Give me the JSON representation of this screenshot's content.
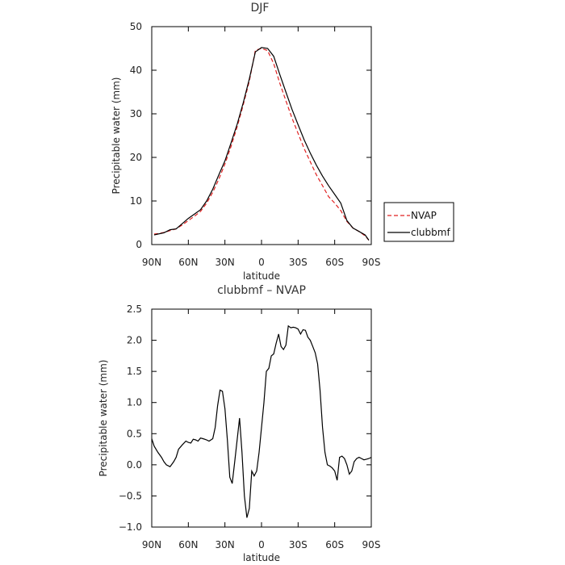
{
  "chart_data": [
    {
      "type": "line",
      "title": "DJF",
      "xlabel": "latitude",
      "ylabel": "Precipitable water (mm)",
      "xlim": [
        -90,
        90
      ],
      "ylim": [
        0,
        50
      ],
      "x_ticks": [
        -90,
        -60,
        -30,
        0,
        30,
        60,
        90
      ],
      "x_tick_labels": [
        "90N",
        "60N",
        "30N",
        "0",
        "30S",
        "60S",
        "90S"
      ],
      "y_ticks": [
        0,
        10,
        20,
        30,
        40,
        50
      ],
      "y_tick_labels": [
        "0",
        "10",
        "20",
        "30",
        "40",
        "50"
      ],
      "legend": "right",
      "series": [
        {
          "name": "NVAP",
          "color": "#e02020",
          "dash": "dashed",
          "x": [
            -88,
            -85,
            -80,
            -75,
            -70,
            -65,
            -60,
            -55,
            -50,
            -45,
            -40,
            -35,
            -30,
            -25,
            -20,
            -15,
            -10,
            -5,
            0,
            5,
            10,
            15,
            20,
            25,
            30,
            35,
            40,
            45,
            50,
            55,
            60,
            65,
            70,
            75,
            80,
            85,
            88
          ],
          "y": [
            2.4,
            2.5,
            2.8,
            3.2,
            3.6,
            4.5,
            5.5,
            6.5,
            7.6,
            9.5,
            12.0,
            15.0,
            18.5,
            22.5,
            27.0,
            32.0,
            37.5,
            44.6,
            45.0,
            44.5,
            41.5,
            37.0,
            33.0,
            29.0,
            25.5,
            22.0,
            19.0,
            16.0,
            13.5,
            11.0,
            9.5,
            7.8,
            5.3,
            3.8,
            3.0,
            2.0,
            1.0
          ]
        },
        {
          "name": "clubbmf",
          "color": "#000000",
          "dash": "solid",
          "x": [
            -88,
            -85,
            -80,
            -75,
            -70,
            -65,
            -60,
            -55,
            -50,
            -45,
            -40,
            -35,
            -30,
            -25,
            -20,
            -15,
            -10,
            -5,
            0,
            5,
            10,
            15,
            20,
            25,
            30,
            35,
            40,
            45,
            50,
            55,
            60,
            65,
            70,
            75,
            80,
            85,
            88
          ],
          "y": [
            2.2,
            2.4,
            2.7,
            3.4,
            3.6,
            4.8,
            6.0,
            7.0,
            8.0,
            10.0,
            12.7,
            16.0,
            19.2,
            23.3,
            27.6,
            32.5,
            38.0,
            44.2,
            45.2,
            45.0,
            43.2,
            39.0,
            35.0,
            31.0,
            27.5,
            24.0,
            21.0,
            18.2,
            15.7,
            13.5,
            11.5,
            9.5,
            5.5,
            3.8,
            3.0,
            2.2,
            1.0
          ]
        }
      ]
    },
    {
      "type": "line",
      "title": "clubbmf – NVAP",
      "xlabel": "latitude",
      "ylabel": "Precipitable water (mm)",
      "xlim": [
        -90,
        90
      ],
      "ylim": [
        -1.0,
        2.5
      ],
      "x_ticks": [
        -90,
        -60,
        -30,
        0,
        30,
        60,
        90
      ],
      "x_tick_labels": [
        "90N",
        "60N",
        "30N",
        "0",
        "30S",
        "60S",
        "90S"
      ],
      "y_ticks": [
        -1.0,
        -0.5,
        0.0,
        0.5,
        1.0,
        1.5,
        2.0,
        2.5
      ],
      "y_tick_labels": [
        "−1.0",
        "−0.5",
        "0.0",
        "0.5",
        "1.0",
        "1.5",
        "2.0",
        "2.5"
      ],
      "series": [
        {
          "color": "#000000",
          "dash": "solid",
          "x": [
            -90,
            -88,
            -85,
            -82,
            -80,
            -78,
            -75,
            -72,
            -70,
            -68,
            -65,
            -62,
            -60,
            -58,
            -56,
            -54,
            -52,
            -50,
            -48,
            -45,
            -43,
            -40,
            -38,
            -36,
            -34,
            -32,
            -30,
            -28,
            -26,
            -24,
            -22,
            -20,
            -18,
            -16,
            -14,
            -12,
            -10,
            -8,
            -6,
            -4,
            -2,
            0,
            2,
            4,
            6,
            8,
            10,
            12,
            14,
            16,
            18,
            20,
            22,
            24,
            26,
            28,
            30,
            32,
            34,
            36,
            38,
            40,
            42,
            44,
            46,
            48,
            50,
            52,
            54,
            56,
            58,
            60,
            62,
            64,
            66,
            68,
            70,
            72,
            74,
            76,
            78,
            80,
            82,
            84,
            86,
            88,
            90
          ],
          "y": [
            0.42,
            0.3,
            0.2,
            0.12,
            0.05,
            0.0,
            -0.03,
            0.05,
            0.12,
            0.25,
            0.32,
            0.38,
            0.36,
            0.35,
            0.41,
            0.4,
            0.38,
            0.43,
            0.42,
            0.4,
            0.38,
            0.42,
            0.6,
            0.95,
            1.2,
            1.18,
            0.9,
            0.4,
            -0.2,
            -0.3,
            0.05,
            0.4,
            0.75,
            0.2,
            -0.5,
            -0.85,
            -0.7,
            -0.1,
            -0.18,
            -0.1,
            0.2,
            0.6,
            1.0,
            1.5,
            1.55,
            1.75,
            1.78,
            1.95,
            2.1,
            1.9,
            1.85,
            1.92,
            2.23,
            2.2,
            2.21,
            2.2,
            2.18,
            2.1,
            2.17,
            2.16,
            2.05,
            2.0,
            1.9,
            1.8,
            1.62,
            1.2,
            0.6,
            0.2,
            0.0,
            -0.02,
            -0.05,
            -0.1,
            -0.25,
            0.12,
            0.14,
            0.1,
            0.0,
            -0.15,
            -0.1,
            0.05,
            0.1,
            0.12,
            0.1,
            0.08,
            0.09,
            0.1,
            0.12
          ],
          "note_style": "solid"
        }
      ]
    }
  ]
}
